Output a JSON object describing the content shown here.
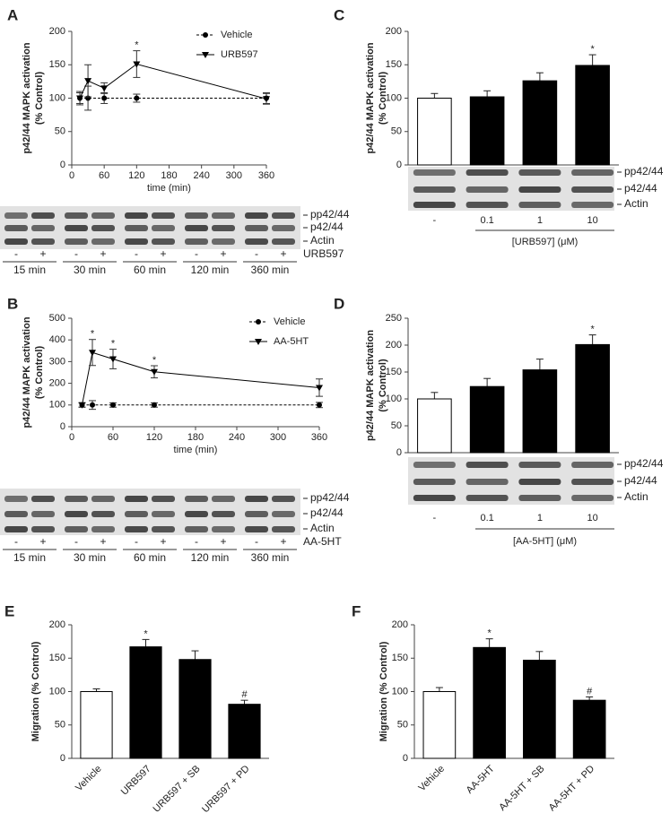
{
  "chart_data": [
    {
      "type": "line",
      "label": "A",
      "ylabel": [
        "p42/44 MAPK activation",
        "(% Control)"
      ],
      "xlabel": "time (min)",
      "x": [
        15,
        30,
        60,
        120,
        360
      ],
      "xlim": [
        0,
        360
      ],
      "xticks": [
        0,
        60,
        120,
        180,
        240,
        300,
        360
      ],
      "ylim": [
        0,
        200
      ],
      "yticks": [
        0,
        50,
        100,
        150,
        200
      ],
      "legend": "upper right",
      "series": [
        {
          "name": "Vehicle",
          "color": "#000000",
          "marker": "circle",
          "linestyle": "dashed",
          "values": [
            100,
            100,
            100,
            100,
            100
          ],
          "errors": [
            8,
            18,
            8,
            6,
            8
          ],
          "significance": [
            null,
            null,
            null,
            null,
            null
          ]
        },
        {
          "name": "URB597",
          "color": "#000000",
          "marker": "triangle-down",
          "linestyle": "solid",
          "values": [
            100,
            126,
            115,
            151,
            99
          ],
          "errors": [
            10,
            24,
            8,
            20,
            8
          ],
          "significance": [
            null,
            null,
            null,
            "*",
            null
          ]
        }
      ],
      "blot": {
        "rows": [
          "pp42/44",
          "p42/44",
          "Actin"
        ],
        "lanes": [
          "-",
          "+",
          "-",
          "+",
          "-",
          "+",
          "-",
          "+",
          "-",
          "+"
        ],
        "groups": [
          "15 min",
          "30 min",
          "60 min",
          "120 min",
          "360 min"
        ],
        "treatment": "URB597"
      }
    },
    {
      "type": "line",
      "label": "B",
      "ylabel": [
        "p42/44 MAPK activation",
        "(% Control)"
      ],
      "xlabel": "time (min)",
      "x": [
        15,
        30,
        60,
        120,
        360
      ],
      "xlim": [
        0,
        360
      ],
      "xticks": [
        0,
        60,
        120,
        180,
        240,
        300,
        360
      ],
      "ylim": [
        0,
        500
      ],
      "yticks": [
        0,
        100,
        200,
        300,
        400,
        500
      ],
      "legend": "upper right",
      "series": [
        {
          "name": "Vehicle",
          "color": "#000000",
          "marker": "circle",
          "linestyle": "dashed",
          "values": [
            100,
            100,
            100,
            100,
            100
          ],
          "errors": [
            10,
            20,
            10,
            10,
            12
          ],
          "significance": [
            null,
            null,
            null,
            null,
            null
          ]
        },
        {
          "name": "AA-5HT",
          "color": "#000000",
          "marker": "triangle-down",
          "linestyle": "solid",
          "values": [
            100,
            342,
            312,
            253,
            180
          ],
          "errors": [
            10,
            60,
            45,
            28,
            40
          ],
          "significance": [
            null,
            "*",
            "*",
            "*",
            null
          ]
        }
      ],
      "blot": {
        "rows": [
          "pp42/44",
          "p42/44",
          "Actin"
        ],
        "lanes": [
          "-",
          "+",
          "-",
          "+",
          "-",
          "+",
          "-",
          "+",
          "-",
          "+"
        ],
        "groups": [
          "15 min",
          "30 min",
          "60 min",
          "120 min",
          "360 min"
        ],
        "treatment": "AA-5HT"
      }
    },
    {
      "type": "bar",
      "label": "C",
      "ylabel": [
        "p42/44 MAPK activation",
        "(% Control)"
      ],
      "xlabel": "[URB597] (μM)",
      "categories": [
        "-",
        "0.1",
        "1",
        "10"
      ],
      "values": [
        100,
        102,
        126,
        149
      ],
      "errors": [
        7,
        9,
        12,
        16
      ],
      "significance": [
        null,
        null,
        null,
        "*"
      ],
      "colors": [
        "#ffffff",
        "#000000",
        "#000000",
        "#000000"
      ],
      "ylim": [
        0,
        200
      ],
      "yticks": [
        0,
        50,
        100,
        150,
        200
      ],
      "blot": {
        "rows": [
          "pp42/44",
          "p42/44",
          "Actin"
        ]
      }
    },
    {
      "type": "bar",
      "label": "D",
      "ylabel": [
        "p42/44 MAPK activation",
        "(% Control)"
      ],
      "xlabel": "[AA-5HT] (μM)",
      "categories": [
        "-",
        "0.1",
        "1",
        "10"
      ],
      "values": [
        100,
        123,
        154,
        201
      ],
      "errors": [
        12,
        15,
        20,
        18
      ],
      "significance": [
        null,
        null,
        null,
        "*"
      ],
      "colors": [
        "#ffffff",
        "#000000",
        "#000000",
        "#000000"
      ],
      "ylim": [
        0,
        250
      ],
      "yticks": [
        0,
        50,
        100,
        150,
        200,
        250
      ],
      "blot": {
        "rows": [
          "pp42/44",
          "p42/44",
          "Actin"
        ]
      }
    },
    {
      "type": "bar",
      "label": "E",
      "ylabel": [
        "Migration (% Control)"
      ],
      "categories": [
        "Vehicle",
        "URB597",
        "URB597 + SB",
        "URB597 + PD"
      ],
      "values": [
        100,
        167,
        148,
        81
      ],
      "errors": [
        4,
        11,
        13,
        6
      ],
      "significance": [
        null,
        "*",
        null,
        "#"
      ],
      "colors": [
        "#ffffff",
        "#000000",
        "#000000",
        "#000000"
      ],
      "ylim": [
        0,
        200
      ],
      "yticks": [
        0,
        50,
        100,
        150,
        200
      ]
    },
    {
      "type": "bar",
      "label": "F",
      "ylabel": [
        "Migration (% Control)"
      ],
      "categories": [
        "Vehicle",
        "AA-5HT",
        "AA-5HT + SB",
        "AA-5HT + PD"
      ],
      "values": [
        100,
        166,
        147,
        87
      ],
      "errors": [
        6,
        13,
        13,
        5
      ],
      "significance": [
        null,
        "*",
        null,
        "#"
      ],
      "colors": [
        "#ffffff",
        "#000000",
        "#000000",
        "#000000"
      ],
      "ylim": [
        0,
        200
      ],
      "yticks": [
        0,
        50,
        100,
        150,
        200
      ]
    }
  ]
}
